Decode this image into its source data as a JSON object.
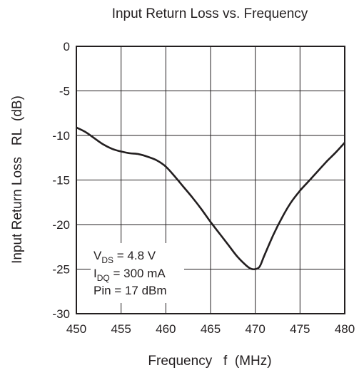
{
  "chart_data": {
    "type": "line",
    "title": "Input Return Loss vs. Frequency",
    "xlabel": "Frequency   f  (MHz)",
    "ylabel": "Input Return Loss   RL  (dB)",
    "xlim": [
      450,
      480
    ],
    "ylim": [
      -30,
      0
    ],
    "x_ticks": [
      "450",
      "455",
      "460",
      "465",
      "470",
      "475",
      "480"
    ],
    "y_ticks": [
      "0",
      "-5",
      "-10",
      "-15",
      "-20",
      "-25",
      "-30"
    ],
    "grid": true,
    "series": [
      {
        "x": [
          450,
          451,
          452,
          453,
          454,
          455,
          456,
          457,
          458,
          459,
          460,
          461,
          462,
          463,
          464,
          465,
          466,
          467,
          468,
          469,
          469.5,
          470,
          470.5,
          471,
          472,
          473,
          474,
          475,
          476,
          477,
          478,
          479,
          480
        ],
        "y": [
          -9.1,
          -9.6,
          -10.3,
          -11.0,
          -11.5,
          -11.8,
          -12.0,
          -12.1,
          -12.4,
          -12.8,
          -13.5,
          -14.6,
          -15.8,
          -17.0,
          -18.3,
          -19.7,
          -21.0,
          -22.3,
          -23.6,
          -24.6,
          -24.95,
          -25.0,
          -24.7,
          -23.5,
          -21.2,
          -19.2,
          -17.5,
          -16.2,
          -15.1,
          -14.0,
          -12.9,
          -11.9,
          -10.8
        ]
      }
    ],
    "annotation": {
      "lines": [
        {
          "main": "V",
          "sub": "DS",
          "rest": " = 4.8 V"
        },
        {
          "main": "I",
          "sub": "DQ",
          "rest": " = 300 mA"
        },
        {
          "main": "Pin = 17 dBm",
          "sub": "",
          "rest": ""
        }
      ]
    }
  }
}
